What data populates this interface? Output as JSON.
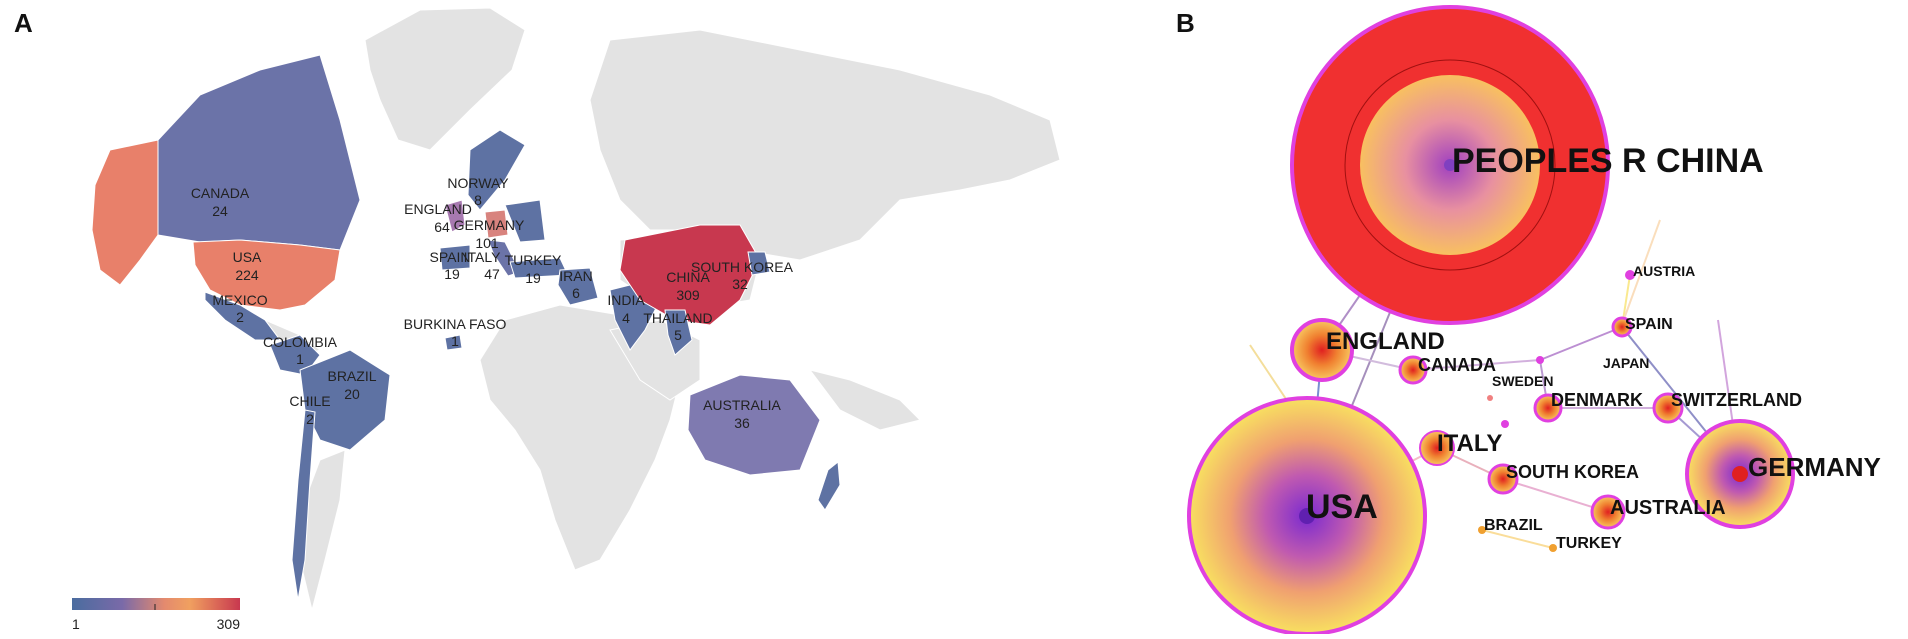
{
  "panel_a": {
    "letter": "A",
    "countries": [
      {
        "name": "CANADA",
        "value": "24"
      },
      {
        "name": "USA",
        "value": "224"
      },
      {
        "name": "MEXICO",
        "value": "2"
      },
      {
        "name": "COLOMBIA",
        "value": "1"
      },
      {
        "name": "BRAZIL",
        "value": "20"
      },
      {
        "name": "CHILE",
        "value": "2"
      },
      {
        "name": "NORWAY",
        "value": "8"
      },
      {
        "name": "ENGLAND",
        "value": "64"
      },
      {
        "name": "GERMANY",
        "value": "101"
      },
      {
        "name": "SPAIN",
        "value": "19"
      },
      {
        "name": "ITALY",
        "value": "47"
      },
      {
        "name": "TURKEY",
        "value": "19"
      },
      {
        "name": "IRAN",
        "value": "6"
      },
      {
        "name": "BURKINA FASO",
        "value": "1"
      },
      {
        "name": "INDIA",
        "value": "4"
      },
      {
        "name": "CHINA",
        "value": "309"
      },
      {
        "name": "SOUTH KOREA",
        "value": "32"
      },
      {
        "name": "THAILAND",
        "value": "5"
      },
      {
        "name": "AUSTRALIA",
        "value": "36"
      }
    ],
    "legend": {
      "min": "1",
      "max": "309",
      "colors": [
        "#4a6c9f",
        "#7a6aa8",
        "#e48a6e",
        "#f0a060",
        "#c8384f"
      ]
    }
  },
  "panel_b": {
    "letter": "B",
    "nodes": [
      {
        "label": "PEOPLES R CHINA"
      },
      {
        "label": "USA"
      },
      {
        "label": "GERMANY"
      },
      {
        "label": "ENGLAND"
      },
      {
        "label": "ITALY"
      },
      {
        "label": "CANADA"
      },
      {
        "label": "SOUTH KOREA"
      },
      {
        "label": "AUSTRALIA"
      },
      {
        "label": "DENMARK"
      },
      {
        "label": "SWITZERLAND"
      },
      {
        "label": "SPAIN"
      },
      {
        "label": "AUSTRIA"
      },
      {
        "label": "JAPAN"
      },
      {
        "label": "SWEDEN"
      },
      {
        "label": "BRAZIL"
      },
      {
        "label": "TURKEY"
      }
    ]
  }
}
